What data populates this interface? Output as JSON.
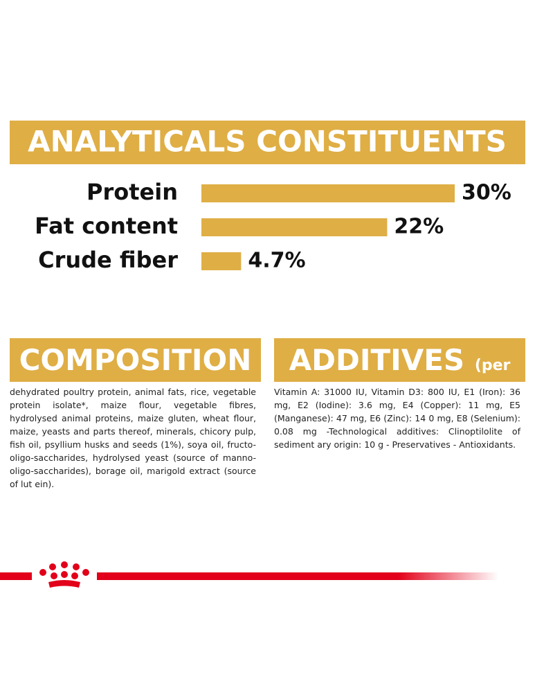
{
  "chart_data": {
    "type": "bar",
    "orientation": "horizontal",
    "title": "ANALYTICALS CONSTITUENTS",
    "categories": [
      "Protein",
      "Fat content",
      "Crude fiber"
    ],
    "values": [
      30,
      22,
      4.7
    ],
    "value_labels": [
      "30%",
      "22%",
      "4.7%"
    ],
    "color": "#dfae45"
  },
  "composition": {
    "title": "COMPOSITION",
    "text": "dehydrated poultry protein, animal fats, rice, vegetable protein isolate*, maize flour, vegetable fibres, hydrolysed animal proteins, maize gluten, wheat flour, maize, yeasts and parts thereof, minerals, chicory pulp, fish oil, psyllium husks and seeds (1%), soya oil, fructo-oligo-saccharides, hydrolysed yeast (source of manno-oligo-saccharides), borage oil, marigold extract (source of lut ein)."
  },
  "additives": {
    "title": "ADDITIVES",
    "unit": "(per kg)",
    "text": "Vitamin A: 31000 IU, Vitamin D3: 800 IU, E1 (Iron): 36 mg, E2 (Iodine): 3.6 mg, E4 (Copper): 11 mg, E5 (Manganese): 47 mg, E6 (Zinc): 14 0 mg, E8 (Selenium): 0.08 mg -Technological additives: Clinoptilolite of sediment ary origin: 10 g - Preservatives - Antioxidants."
  }
}
